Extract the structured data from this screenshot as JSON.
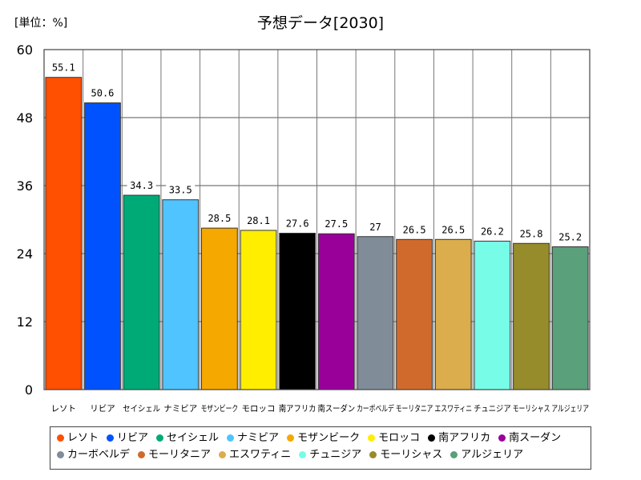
{
  "unit_label": "[単位：%]",
  "chart_data": {
    "type": "bar",
    "title": "予想データ[2030]",
    "xlabel": "",
    "ylabel": "",
    "ylim": [
      0,
      60
    ],
    "yticks": [
      0,
      12,
      24,
      36,
      48,
      60
    ],
    "grid": true,
    "legend_position": "bottom",
    "categories": [
      "レソト",
      "リビア",
      "セイシェル",
      "ナミビア",
      "モザンビーク",
      "モロッコ",
      "南アフリカ",
      "南スーダン",
      "カーボベルデ",
      "モーリタニア",
      "エスワティニ",
      "チュニジア",
      "モーリシャス",
      "アルジェリア"
    ],
    "values": [
      55.1,
      50.6,
      34.3,
      33.5,
      28.5,
      28.1,
      27.6,
      27.5,
      27,
      26.5,
      26.5,
      26.2,
      25.8,
      25.2
    ],
    "value_labels": [
      "55.1",
      "50.6",
      "34.3",
      "33.5",
      "28.5",
      "28.1",
      "27.6",
      "27.5",
      "27",
      "26.5",
      "26.5",
      "26.2",
      "25.8",
      "25.2"
    ],
    "colors": [
      "#ff4f00",
      "#0052ff",
      "#00aa77",
      "#4fc4ff",
      "#f5a800",
      "#ffee00",
      "#000000",
      "#990099",
      "#808c98",
      "#d06a2c",
      "#dbad4c",
      "#77fce8",
      "#968c2c",
      "#5aa07a"
    ]
  }
}
